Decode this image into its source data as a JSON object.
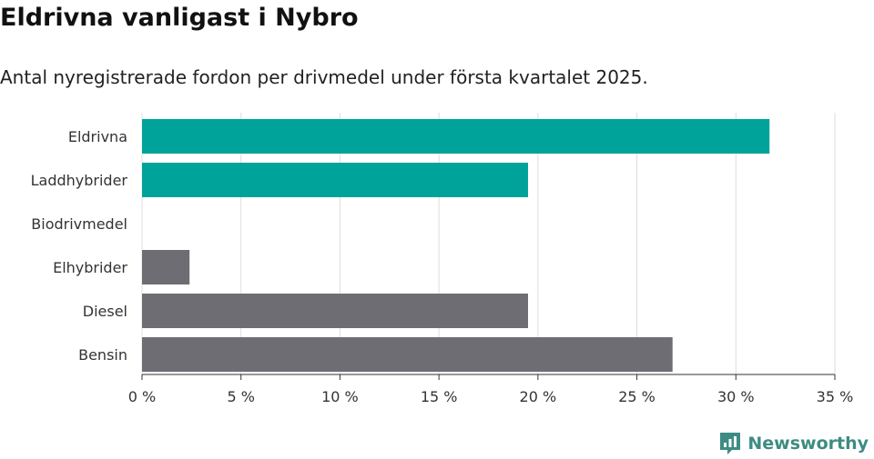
{
  "chart_data": {
    "type": "bar",
    "orientation": "horizontal",
    "title": "Eldrivna vanligast i Nybro",
    "subtitle": "Antal nyregistrerade fordon per drivmedel under första kvartalet 2025.",
    "categories": [
      "Eldrivna",
      "Laddhybrider",
      "Biodrivmedel",
      "Elhybrider",
      "Diesel",
      "Bensin"
    ],
    "values": [
      31.7,
      19.5,
      0,
      2.4,
      19.5,
      26.8
    ],
    "bar_colors": [
      "#00a39a",
      "#00a39a",
      "#00a39a",
      "#6e6d74",
      "#6e6d74",
      "#6e6d74"
    ],
    "x_ticks": [
      "0 %",
      "5 %",
      "10 %",
      "15 %",
      "20 %",
      "25 %",
      "30 %",
      "35 %"
    ],
    "xlim": [
      0,
      35
    ],
    "grid": true,
    "xlabel": "",
    "ylabel": ""
  },
  "brand": {
    "name": "Newsworthy",
    "color": "#3d8c84"
  }
}
